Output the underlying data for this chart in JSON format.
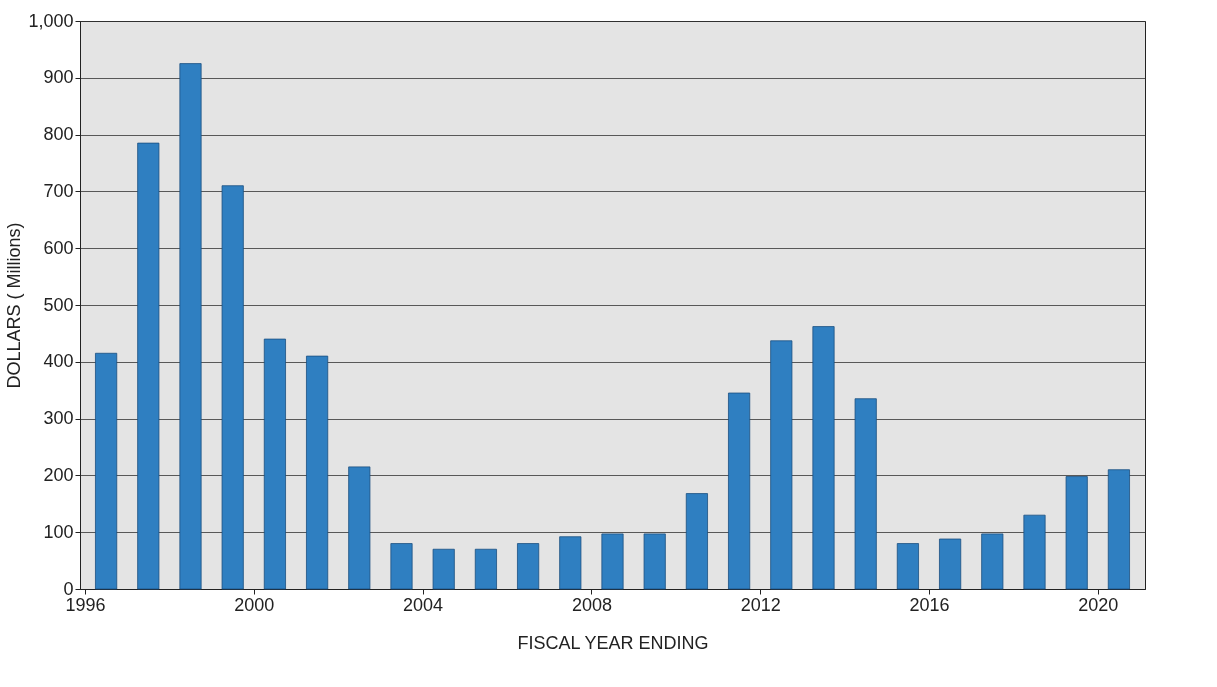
{
  "chart_data": {
    "type": "bar",
    "xlabel": "FISCAL YEAR ENDING",
    "ylabel": "DOLLARS ( Millions)",
    "x": [
      1996.5,
      1997.5,
      1998.5,
      1999.5,
      2000.5,
      2001.5,
      2002.5,
      2003.5,
      2004.5,
      2005.5,
      2006.5,
      2007.5,
      2008.5,
      2009.5,
      2010.5,
      2011.5,
      2012.5,
      2013.5,
      2014.5,
      2015.5,
      2016.5,
      2017.5,
      2018.5,
      2019.5,
      2020.5
    ],
    "values": [
      415,
      785,
      925,
      710,
      440,
      410,
      215,
      80,
      70,
      70,
      80,
      92,
      97,
      97,
      168,
      345,
      437,
      462,
      335,
      80,
      88,
      97,
      130,
      198,
      210
    ],
    "color": "#2f7fc1",
    "xlim": [
      1996,
      2021
    ],
    "xticks": [
      1996,
      2000,
      2004,
      2008,
      2012,
      2016,
      2020
    ],
    "ylim": [
      0,
      1000
    ],
    "yticks": [
      0,
      100,
      200,
      300,
      400,
      500,
      600,
      700,
      800,
      900,
      {
        "value": 1000,
        "label": "1,000"
      }
    ],
    "grid": "y"
  }
}
